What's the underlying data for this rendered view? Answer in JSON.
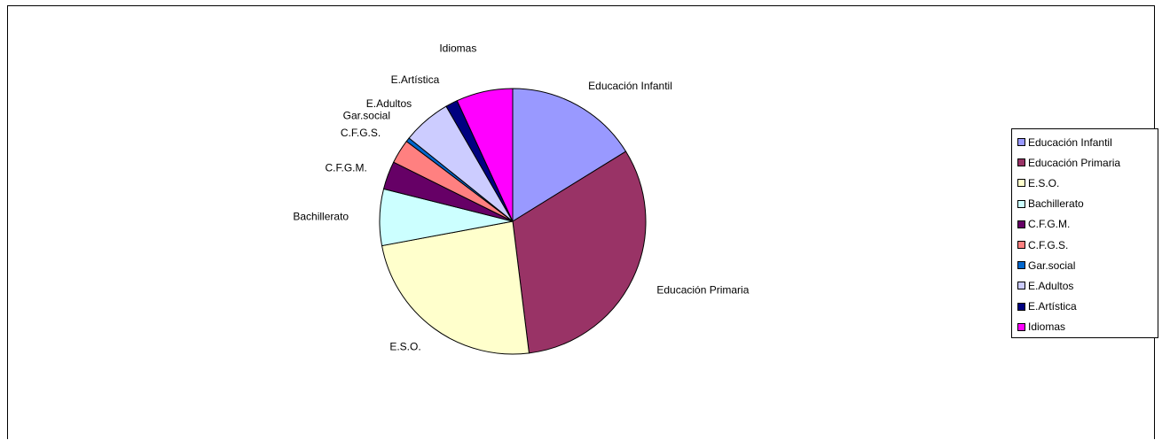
{
  "chart_data": {
    "type": "pie",
    "title": "",
    "legend_position": "right",
    "categories": [
      "Educación Infantil",
      "Educación Primaria",
      "E.S.O.",
      "Bachillerato",
      "C.F.G.M.",
      "C.F.G.S.",
      "Gar.social",
      "E.Adultos",
      "E.Artística",
      "Idiomas"
    ],
    "values": [
      16.5,
      32.5,
      24.5,
      7.0,
      3.5,
      3.0,
      0.5,
      6.0,
      1.5,
      7.0
    ],
    "colors": [
      "#9999FF",
      "#993366",
      "#FFFFCC",
      "#CCFFFF",
      "#660066",
      "#FF8080",
      "#0066CC",
      "#CCCCFF",
      "#000080",
      "#FF00FF"
    ]
  }
}
